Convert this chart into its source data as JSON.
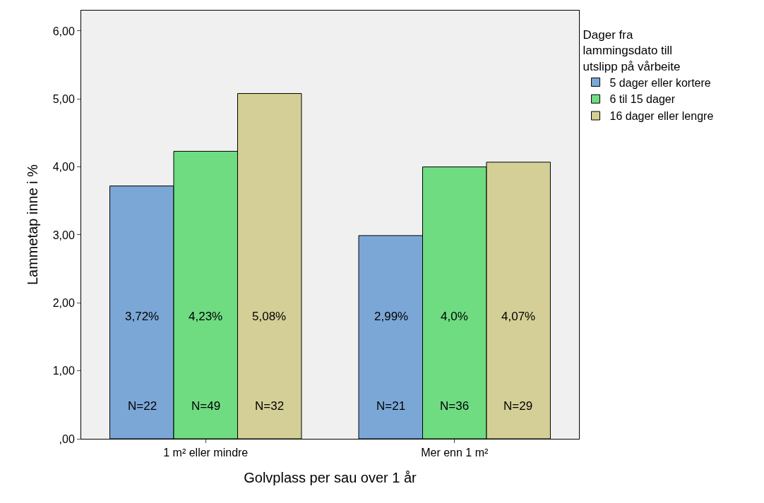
{
  "chart_data": {
    "type": "bar",
    "xlabel": "Golvplass per sau over 1 år",
    "ylabel": "Lammetap inne i %",
    "legend_title": "Dager fra\nlammingsdato till\nutslipp på vårbeite",
    "legend": "right",
    "grid": false,
    "categories": [
      "1 m² eller mindre",
      "Mer enn 1 m²"
    ],
    "series": [
      {
        "name": "5 dager eller kortere",
        "color": "#7ba7d6",
        "values": [
          3.72,
          2.99
        ],
        "value_labels": [
          "3,72%",
          "2,99%"
        ]
      },
      {
        "name": "6 til 15 dager",
        "color": "#6fdc82",
        "values": [
          4.23,
          4.0
        ],
        "value_labels": [
          "4,23%",
          "4,0%"
        ]
      },
      {
        "name": "16 dager eller lengre",
        "color": "#d4cf96",
        "values": [
          5.08,
          4.07
        ],
        "value_labels": [
          "5,08%",
          "4,07%"
        ]
      }
    ],
    "annotations": [
      "N=22",
      "N=49",
      "N=32",
      "N=21",
      "N=36",
      "N=29"
    ],
    "ylim": [
      0,
      6.3
    ],
    "yticks": [
      {
        "value": 0,
        "label": ",00"
      },
      {
        "value": 1,
        "label": "1,00"
      },
      {
        "value": 2,
        "label": "2,00"
      },
      {
        "value": 3,
        "label": "3,00"
      },
      {
        "value": 4,
        "label": "4,00"
      },
      {
        "value": 5,
        "label": "5,00"
      },
      {
        "value": 6,
        "label": "6,00"
      }
    ]
  }
}
